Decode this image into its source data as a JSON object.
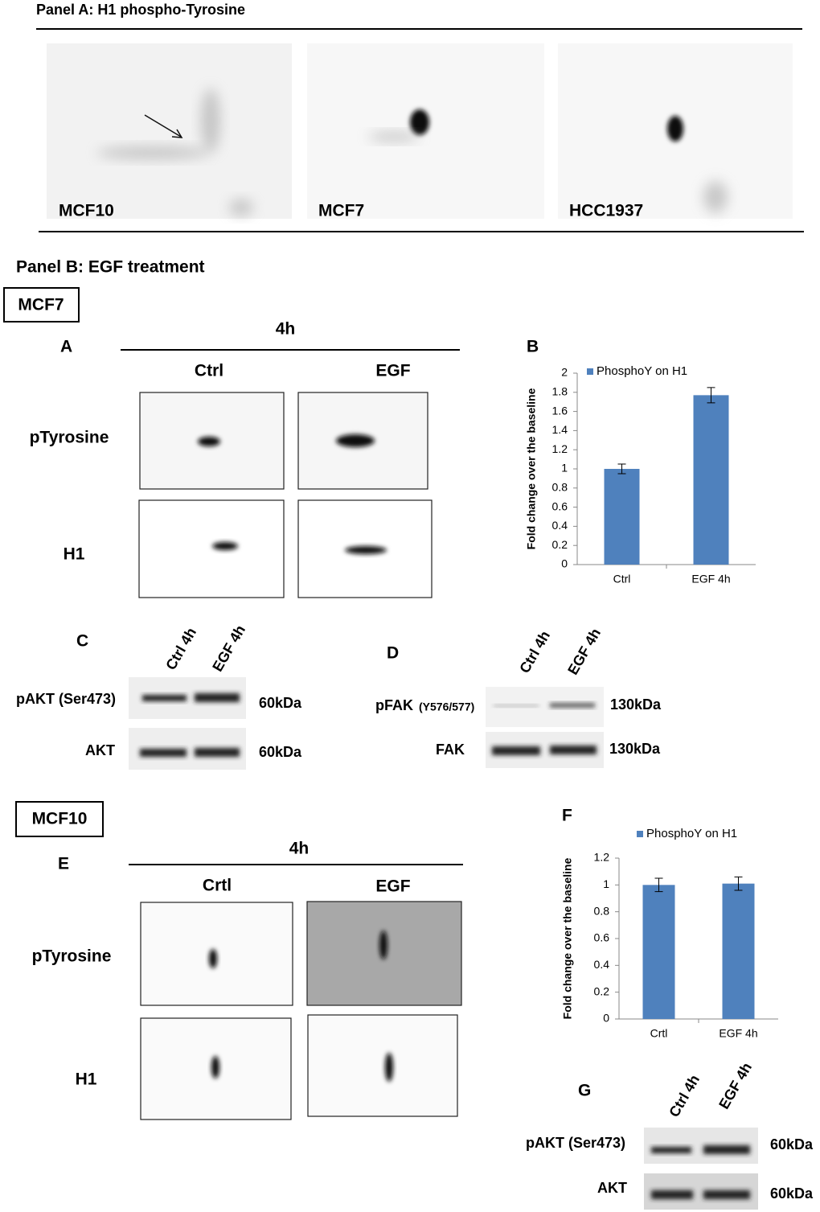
{
  "panel_a": {
    "title": "Panel A: H1 phospho-Tyrosine",
    "cell_lines": [
      "MCF10",
      "MCF7",
      "HCC1937"
    ]
  },
  "panel_b": {
    "title": "Panel B: EGF treatment",
    "mcf7": {
      "label": "MCF7",
      "a": {
        "letter": "A",
        "time": "4h",
        "conditions": [
          "Ctrl",
          "EGF"
        ],
        "rows": [
          "pTyrosine",
          "H1"
        ]
      },
      "b": {
        "letter": "B"
      },
      "c": {
        "letter": "C",
        "lanes": [
          "Ctrl 4h",
          "EGF 4h"
        ],
        "rows": [
          {
            "name": "pAKT (Ser473)",
            "size": "60kDa"
          },
          {
            "name": "AKT",
            "size": "60kDa"
          }
        ]
      },
      "d": {
        "letter": "D",
        "lanes": [
          "Ctrl 4h",
          "EGF 4h"
        ],
        "rows": [
          {
            "name": "pFAK",
            "site": "(Y576/577)",
            "size": "130kDa"
          },
          {
            "name": "FAK",
            "size": "130kDa"
          }
        ]
      }
    },
    "mcf10": {
      "label": "MCF10",
      "e": {
        "letter": "E",
        "time": "4h",
        "conditions": [
          "Crtl",
          "EGF"
        ],
        "rows": [
          "pTyrosine",
          "H1"
        ]
      },
      "f": {
        "letter": "F"
      },
      "g": {
        "letter": "G",
        "lanes": [
          "Ctrl 4h",
          "EGF 4h"
        ],
        "rows": [
          {
            "name": "pAKT (Ser473)",
            "size": "60kDa"
          },
          {
            "name": "AKT",
            "size": "60kDa"
          }
        ]
      }
    }
  },
  "chart_data": [
    {
      "type": "bar",
      "y_label": "Fold change over the baseline",
      "categories": [
        "Ctrl",
        "EGF 4h"
      ],
      "series": [
        {
          "name": "PhosphoY on H1",
          "color": "#4f81bd",
          "values": [
            1,
            1.77
          ],
          "errors": [
            0.05,
            0.08
          ]
        }
      ],
      "ylim": [
        0,
        2
      ],
      "yticks": [
        0,
        0.2,
        0.4,
        0.6,
        0.8,
        1,
        1.2,
        1.4,
        1.6,
        1.8,
        2
      ],
      "legend": "top"
    },
    {
      "type": "bar",
      "y_label": "Fold change over the baseline",
      "categories": [
        "Crtl",
        "EGF 4h"
      ],
      "series": [
        {
          "name": "PhosphoY on H1",
          "color": "#4f81bd",
          "values": [
            1,
            1.01
          ],
          "errors": [
            0.05,
            0.05
          ]
        }
      ],
      "ylim": [
        0,
        1.2
      ],
      "yticks": [
        0,
        0.2,
        0.4,
        0.6,
        0.8,
        1,
        1.2
      ],
      "legend": "top"
    }
  ]
}
